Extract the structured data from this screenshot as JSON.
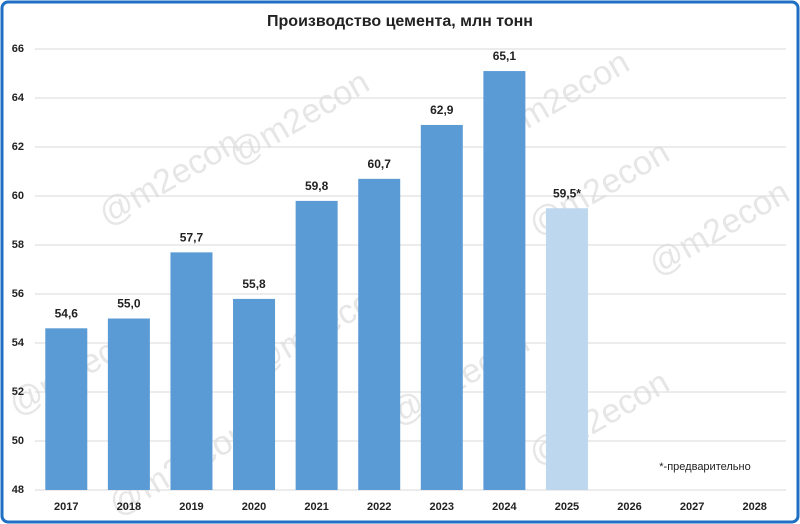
{
  "chart_data": {
    "type": "bar",
    "title": "Производство цемента, млн тонн",
    "categories": [
      "2017",
      "2018",
      "2019",
      "2020",
      "2021",
      "2022",
      "2023",
      "2024",
      "2025",
      "2026",
      "2027",
      "2028"
    ],
    "values": [
      54.6,
      55.0,
      57.7,
      55.8,
      59.8,
      60.7,
      62.9,
      65.1,
      59.5,
      null,
      null,
      null
    ],
    "value_labels": [
      "54,6",
      "55,0",
      "57,7",
      "55,8",
      "59,8",
      "60,7",
      "62,9",
      "65,1",
      "59,5*",
      null,
      null,
      null
    ],
    "colors": [
      "#5b9bd5",
      "#5b9bd5",
      "#5b9bd5",
      "#5b9bd5",
      "#5b9bd5",
      "#5b9bd5",
      "#5b9bd5",
      "#5b9bd5",
      "#bdd7ee",
      null,
      null,
      null
    ],
    "ylim": [
      48,
      66
    ],
    "yticks": [
      48,
      50,
      52,
      54,
      56,
      58,
      60,
      62,
      64,
      66
    ],
    "grid": true,
    "annotation": "*-предварительно",
    "watermark": "@m2econ"
  }
}
